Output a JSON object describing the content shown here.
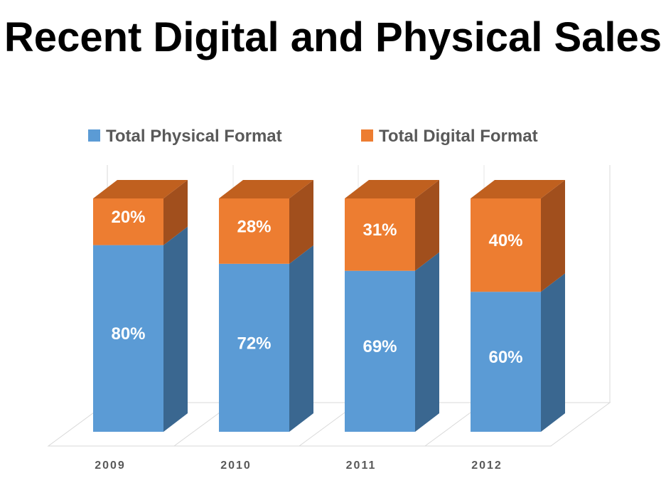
{
  "chart_data": {
    "type": "bar",
    "stacked": true,
    "three_d": true,
    "title": "Recent Digital and Physical Sales",
    "categories": [
      "2009",
      "2010",
      "2011",
      "2012"
    ],
    "series": [
      {
        "name": "Total Physical Format",
        "values": [
          80,
          72,
          69,
          60
        ],
        "labels": [
          "80%",
          "72%",
          "69%",
          "60%"
        ],
        "color": "#5b9bd5",
        "side_color": "#3a6790",
        "top_color": "#4a80b4"
      },
      {
        "name": "Total Digital Format",
        "values": [
          20,
          28,
          31,
          40
        ],
        "labels": [
          "20%",
          "28%",
          "31%",
          "40%"
        ],
        "color": "#ed7d31",
        "side_color": "#a14f1d",
        "top_color": "#c0601f"
      }
    ],
    "ylim": [
      0,
      100
    ],
    "legend": "top",
    "grid": false
  }
}
